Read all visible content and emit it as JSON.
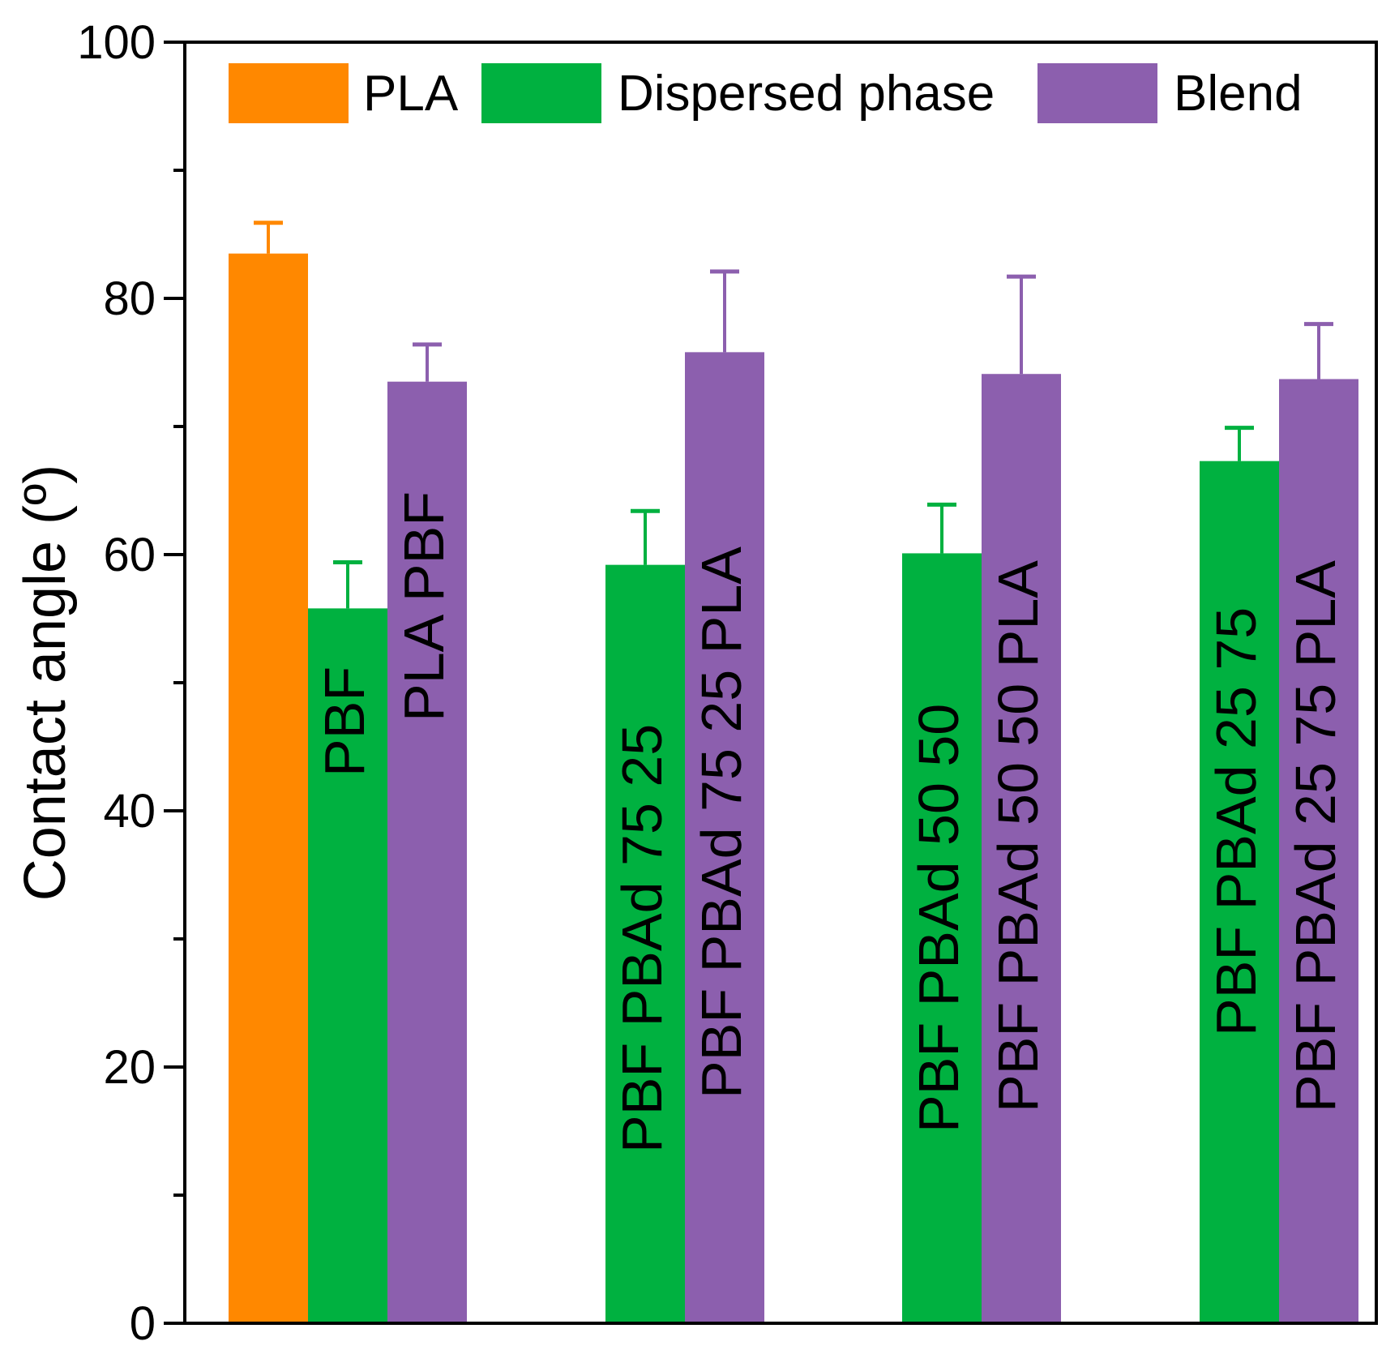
{
  "chart_data": {
    "type": "bar",
    "title": "",
    "xlabel": "",
    "ylabel": "Contact angle (º)",
    "ylim": [
      0,
      100
    ],
    "yticks": [
      0,
      20,
      40,
      60,
      80,
      100
    ],
    "minor_ticks": true,
    "grid": false,
    "legend_position": "top",
    "legend": [
      {
        "name": "PLA",
        "color": "#ff8800"
      },
      {
        "name": "Dispersed phase",
        "color": "#00b140"
      },
      {
        "name": "Blend",
        "color": "#8c5fae"
      }
    ],
    "groups": [
      {
        "bars": [
          {
            "series": "PLA",
            "label": "",
            "value": 83.5,
            "error": 2.4
          },
          {
            "series": "Dispersed phase",
            "label": "PBF",
            "value": 55.8,
            "error": 3.6
          },
          {
            "series": "Blend",
            "label": "PLA PBF",
            "value": 73.5,
            "error": 2.9
          }
        ]
      },
      {
        "bars": [
          {
            "series": "Dispersed phase",
            "label": "PBF PBAd 75 25",
            "value": 59.2,
            "error": 4.2
          },
          {
            "series": "Blend",
            "label": "PBF PBAd 75 25 PLA",
            "value": 75.8,
            "error": 6.3
          }
        ]
      },
      {
        "bars": [
          {
            "series": "Dispersed phase",
            "label": "PBF PBAd 50 50",
            "value": 60.1,
            "error": 3.8
          },
          {
            "series": "Blend",
            "label": "PBF PBAd 50 50 PLA",
            "value": 74.1,
            "error": 7.6
          }
        ]
      },
      {
        "bars": [
          {
            "series": "Dispersed phase",
            "label": "PBF PBAd 25 75",
            "value": 67.3,
            "error": 2.6
          },
          {
            "series": "Blend",
            "label": "PBF PBAd 25 75 PLA",
            "value": 73.7,
            "error": 4.3
          }
        ]
      }
    ]
  }
}
